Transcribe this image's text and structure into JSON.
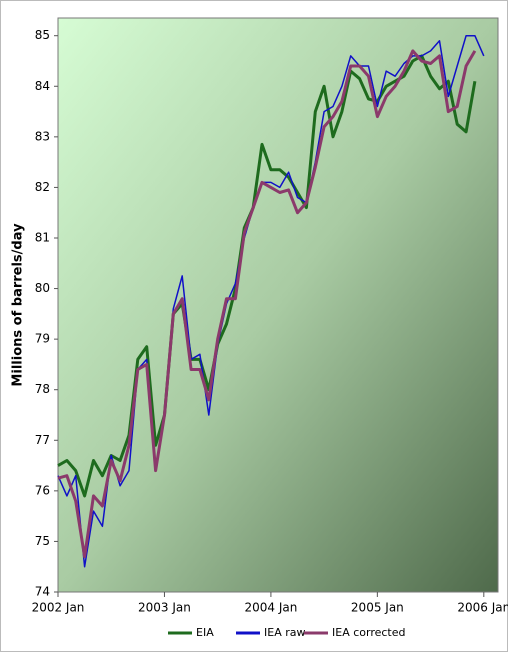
{
  "chart_data": {
    "type": "line",
    "y_label": "Millions of barrels/day",
    "categories": [
      "2002 Jan",
      null,
      null,
      null,
      null,
      null,
      null,
      null,
      null,
      null,
      null,
      null,
      "2003 Jan",
      null,
      null,
      null,
      null,
      null,
      null,
      null,
      null,
      null,
      null,
      null,
      "2004 Jan",
      null,
      null,
      null,
      null,
      null,
      null,
      null,
      null,
      null,
      null,
      null,
      "2005 Jan",
      null,
      null,
      null,
      null,
      null,
      null,
      null,
      null,
      null,
      null,
      null,
      "2006 Jan"
    ],
    "series": [
      {
        "name": "EIA",
        "color": "#1e6b1e",
        "values": [
          76.5,
          76.6,
          76.4,
          75.9,
          76.6,
          76.3,
          76.7,
          76.6,
          77.1,
          78.6,
          78.85,
          76.9,
          77.5,
          79.5,
          79.7,
          78.6,
          78.6,
          78.0,
          78.9,
          79.3,
          80.0,
          81.2,
          81.6,
          82.85,
          82.35,
          82.35,
          82.2,
          81.9,
          81.6,
          83.5,
          84.0,
          83.0,
          83.5,
          84.3,
          84.15,
          83.75,
          83.7,
          84.0,
          84.1,
          84.2,
          84.5,
          84.6,
          84.2,
          83.95,
          84.1,
          83.25,
          83.1,
          84.1,
          null
        ]
      },
      {
        "name": "IEA raw",
        "color": "#1010c8",
        "values": [
          76.3,
          75.9,
          76.3,
          74.5,
          75.6,
          75.3,
          76.7,
          76.1,
          76.4,
          78.4,
          78.6,
          76.4,
          77.5,
          79.6,
          80.25,
          78.6,
          78.7,
          77.5,
          78.9,
          79.7,
          80.1,
          81.0,
          81.6,
          82.1,
          82.1,
          82.0,
          82.3,
          81.8,
          81.7,
          82.5,
          83.5,
          83.6,
          84.0,
          84.6,
          84.4,
          84.4,
          83.6,
          84.3,
          84.2,
          84.45,
          84.6,
          84.6,
          84.7,
          84.9,
          83.8,
          84.4,
          85.0,
          85.0,
          84.6
        ]
      },
      {
        "name": "IEA corrected",
        "color": "#8b3a6b",
        "values": [
          76.25,
          76.3,
          75.8,
          74.7,
          75.9,
          75.7,
          76.6,
          76.2,
          76.9,
          78.4,
          78.5,
          76.4,
          77.5,
          79.5,
          79.8,
          78.4,
          78.4,
          77.8,
          79.0,
          79.8,
          79.8,
          81.1,
          81.6,
          82.1,
          82.0,
          81.9,
          81.95,
          81.5,
          81.7,
          82.4,
          83.2,
          83.4,
          83.7,
          84.4,
          84.4,
          84.2,
          83.4,
          83.8,
          84.0,
          84.3,
          84.7,
          84.5,
          84.45,
          84.6,
          83.5,
          83.6,
          84.4,
          84.7,
          null
        ]
      }
    ],
    "ylim": [
      74,
      85.35
    ],
    "yticks": [
      74,
      75,
      76,
      77,
      78,
      79,
      80,
      81,
      82,
      83,
      84,
      85
    ],
    "legend": "bottom"
  }
}
